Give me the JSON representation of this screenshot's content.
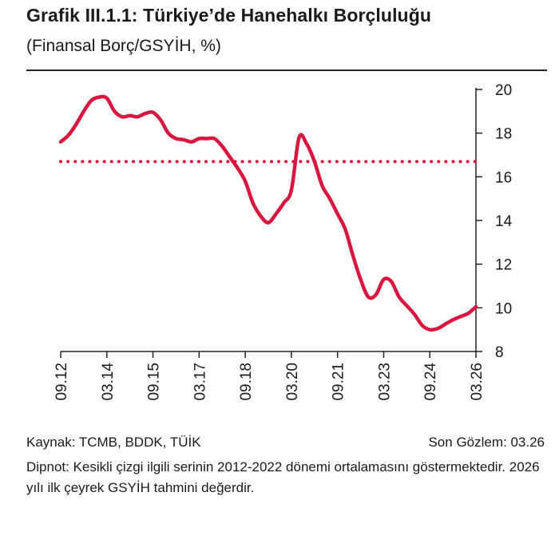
{
  "header": {
    "title": "Grafik III.1.1: Türkiye’de Hanehalkı Borçluluğu",
    "subtitle": "(Finansal Borç/GSYİH, %)"
  },
  "footer": {
    "source": "Kaynak: TCMB, BDDK, TÜİK",
    "last_observation": "Son Gözlem: 03.26",
    "note": "Dipnot: Kesikli çizgi ilgili serinin 2012-2022 dönemi ortalamasını göstermektedir. 2026 yılı ilk çeyrek GSYİH tahmini değerdir."
  },
  "colors": {
    "series": "#d9163f",
    "axis": "#222222",
    "rule": "#222222"
  },
  "chart_data": {
    "type": "line",
    "title": "Grafik III.1.1: Türkiye’de Hanehalkı Borçluluğu",
    "subtitle": "(Finansal Borç/GSYİH, %)",
    "ylim": [
      8,
      20
    ],
    "yticks": [
      8,
      10,
      12,
      14,
      16,
      18,
      20
    ],
    "y_axis_side": "right",
    "xticks": [
      "09.12",
      "03.14",
      "09.15",
      "03.17",
      "09.18",
      "03.20",
      "09.21",
      "03.23",
      "09.24",
      "03.26"
    ],
    "xlim": [
      "09.12",
      "03.26"
    ],
    "grid": false,
    "legend": "none",
    "series": [
      {
        "values": [
          {
            "x": "09.12",
            "y": 17.6
          },
          {
            "x": "12.12",
            "y": 17.9
          },
          {
            "x": "03.13",
            "y": 18.4
          },
          {
            "x": "06.13",
            "y": 19.0
          },
          {
            "x": "09.13",
            "y": 19.5
          },
          {
            "x": "12.13",
            "y": 19.65
          },
          {
            "x": "03.14",
            "y": 19.6
          },
          {
            "x": "06.14",
            "y": 19.0
          },
          {
            "x": "09.14",
            "y": 18.75
          },
          {
            "x": "12.14",
            "y": 18.8
          },
          {
            "x": "03.15",
            "y": 18.75
          },
          {
            "x": "06.15",
            "y": 18.9
          },
          {
            "x": "09.15",
            "y": 18.95
          },
          {
            "x": "12.15",
            "y": 18.6
          },
          {
            "x": "03.16",
            "y": 18.0
          },
          {
            "x": "06.16",
            "y": 17.75
          },
          {
            "x": "09.16",
            "y": 17.7
          },
          {
            "x": "12.16",
            "y": 17.6
          },
          {
            "x": "03.17",
            "y": 17.75
          },
          {
            "x": "06.17",
            "y": 17.75
          },
          {
            "x": "09.17",
            "y": 17.75
          },
          {
            "x": "12.17",
            "y": 17.4
          },
          {
            "x": "03.18",
            "y": 16.9
          },
          {
            "x": "06.18",
            "y": 16.4
          },
          {
            "x": "09.18",
            "y": 15.8
          },
          {
            "x": "12.18",
            "y": 14.8
          },
          {
            "x": "03.19",
            "y": 14.2
          },
          {
            "x": "06.19",
            "y": 13.9
          },
          {
            "x": "09.19",
            "y": 14.3
          },
          {
            "x": "12.19",
            "y": 14.8
          },
          {
            "x": "03.20",
            "y": 15.4
          },
          {
            "x": "06.20",
            "y": 17.8
          },
          {
            "x": "09.20",
            "y": 17.5
          },
          {
            "x": "12.20",
            "y": 16.7
          },
          {
            "x": "03.21",
            "y": 15.6
          },
          {
            "x": "06.21",
            "y": 15.0
          },
          {
            "x": "09.21",
            "y": 14.3
          },
          {
            "x": "12.21",
            "y": 13.6
          },
          {
            "x": "03.22",
            "y": 12.4
          },
          {
            "x": "06.22",
            "y": 11.3
          },
          {
            "x": "09.22",
            "y": 10.5
          },
          {
            "x": "12.22",
            "y": 10.6
          },
          {
            "x": "03.23",
            "y": 11.3
          },
          {
            "x": "06.23",
            "y": 11.2
          },
          {
            "x": "09.23",
            "y": 10.5
          },
          {
            "x": "12.23",
            "y": 10.1
          },
          {
            "x": "03.24",
            "y": 9.7
          },
          {
            "x": "06.24",
            "y": 9.2
          },
          {
            "x": "09.24",
            "y": 9.0
          },
          {
            "x": "12.24",
            "y": 9.05
          },
          {
            "x": "03.25",
            "y": 9.25
          },
          {
            "x": "06.25",
            "y": 9.45
          },
          {
            "x": "09.25",
            "y": 9.6
          },
          {
            "x": "12.25",
            "y": 9.75
          },
          {
            "x": "03.26",
            "y": 10.05
          }
        ]
      }
    ],
    "reference_lines": [
      {
        "y": 16.7,
        "style": "dotted",
        "note": "2012-2022 dönemi ortalaması"
      }
    ]
  }
}
